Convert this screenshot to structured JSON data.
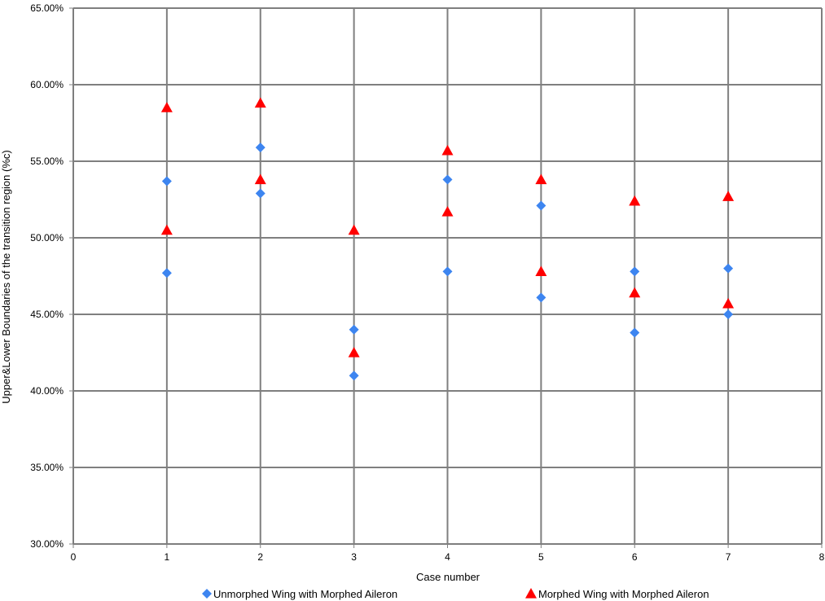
{
  "chart_data": {
    "type": "scatter",
    "xlabel": "Case number",
    "ylabel": "Upper&Lower Boundaries of the transition region (%c)",
    "xlim": [
      0,
      8
    ],
    "ylim": [
      0.3,
      0.65
    ],
    "x_ticks": [
      "0",
      "1",
      "2",
      "3",
      "4",
      "5",
      "6",
      "7",
      "8"
    ],
    "y_ticks": [
      "30.00%",
      "35.00%",
      "40.00%",
      "45.00%",
      "50.00%",
      "55.00%",
      "60.00%",
      "65.00%"
    ],
    "grid": true,
    "legend_position": "bottom",
    "series": [
      {
        "name": "Unmorphed Wing with Morphed Aileron",
        "marker": "diamond",
        "color": "#3d85f0",
        "points": [
          [
            1,
            0.537
          ],
          [
            1,
            0.477
          ],
          [
            2,
            0.559
          ],
          [
            2,
            0.529
          ],
          [
            3,
            0.44
          ],
          [
            3,
            0.41
          ],
          [
            4,
            0.538
          ],
          [
            4,
            0.478
          ],
          [
            5,
            0.521
          ],
          [
            5,
            0.461
          ],
          [
            6,
            0.478
          ],
          [
            6,
            0.438
          ],
          [
            7,
            0.48
          ],
          [
            7,
            0.45
          ]
        ]
      },
      {
        "name": "Morphed Wing with Morphed Aileron",
        "marker": "triangle",
        "color": "#ff0000",
        "points": [
          [
            1,
            0.585
          ],
          [
            1,
            0.505
          ],
          [
            2,
            0.588
          ],
          [
            2,
            0.538
          ],
          [
            3,
            0.505
          ],
          [
            3,
            0.425
          ],
          [
            4,
            0.557
          ],
          [
            4,
            0.517
          ],
          [
            5,
            0.538
          ],
          [
            5,
            0.478
          ],
          [
            6,
            0.524
          ],
          [
            6,
            0.464
          ],
          [
            7,
            0.527
          ],
          [
            7,
            0.457
          ]
        ]
      }
    ]
  }
}
